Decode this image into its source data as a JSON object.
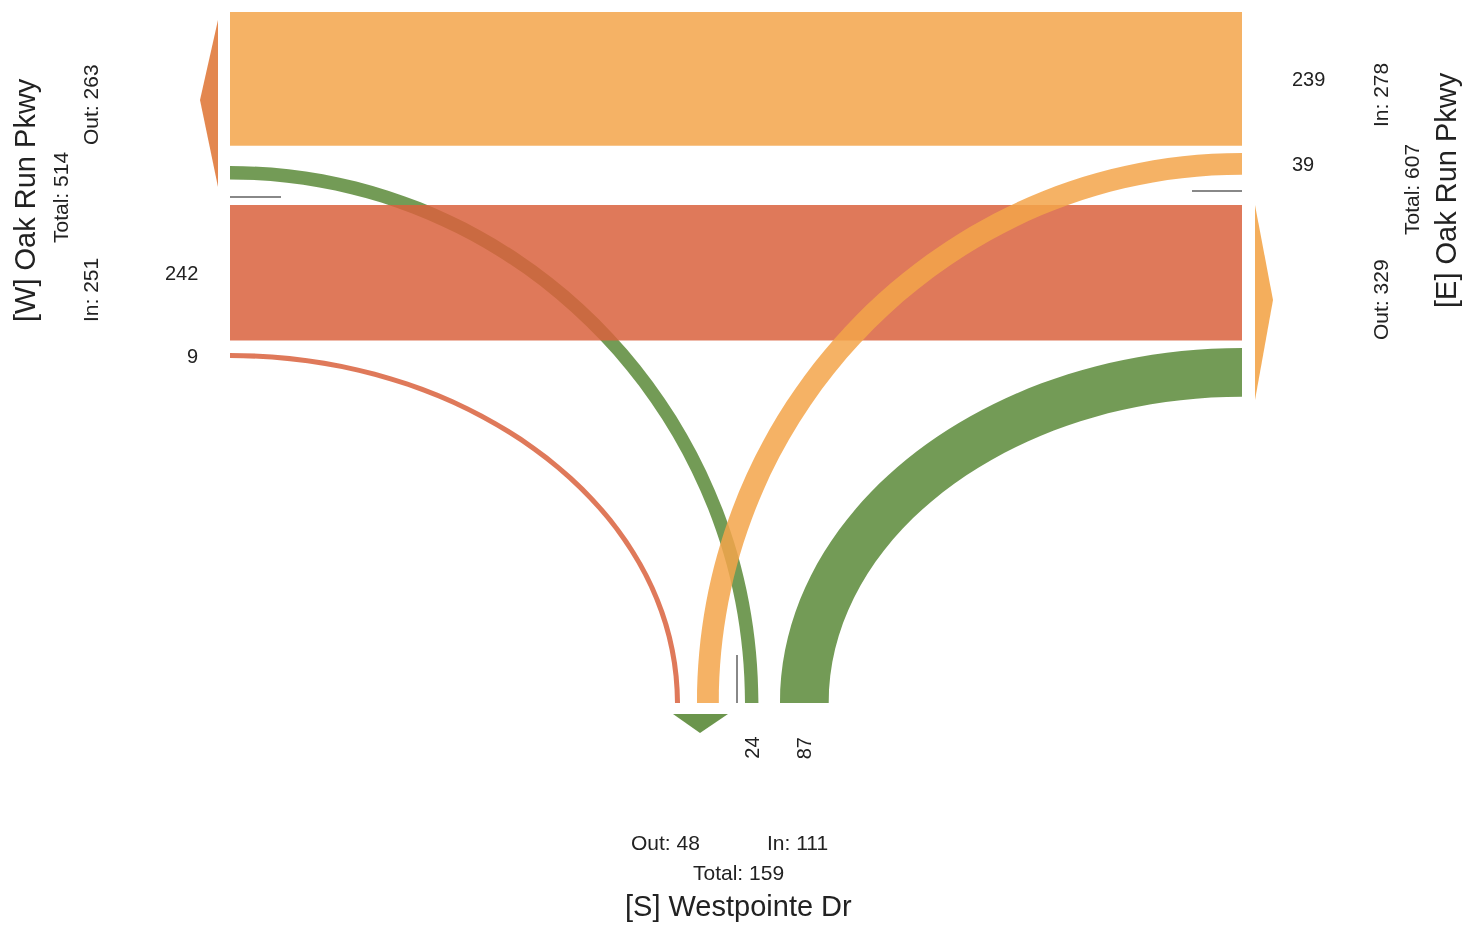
{
  "chart_data": {
    "type": "other",
    "categories": [
      "[W] Oak Run Pkwy",
      "[E] Oak Run Pkwy",
      "[S] Westpointe Dr"
    ],
    "series": [
      {
        "colors": [
          null,
          "#f3a54a",
          "#5b8a38"
        ],
        "values": [
          null,
          239,
          24
        ]
      },
      {
        "colors": [
          "#d9623d",
          null,
          "#5b8a38"
        ],
        "values": [
          242,
          null,
          87
        ]
      },
      {
        "colors": [
          "#d9623d",
          "#f3a54a",
          null
        ],
        "values": [
          9,
          39,
          null
        ]
      }
    ],
    "data_labels": true,
    "annotations": [
      "In: 251",
      "Out: 263",
      "Total: 514",
      "In: 278",
      "Out: 329",
      "Total: 607",
      "In: 111",
      "Out: 48",
      "Total: 159"
    ]
  }
}
